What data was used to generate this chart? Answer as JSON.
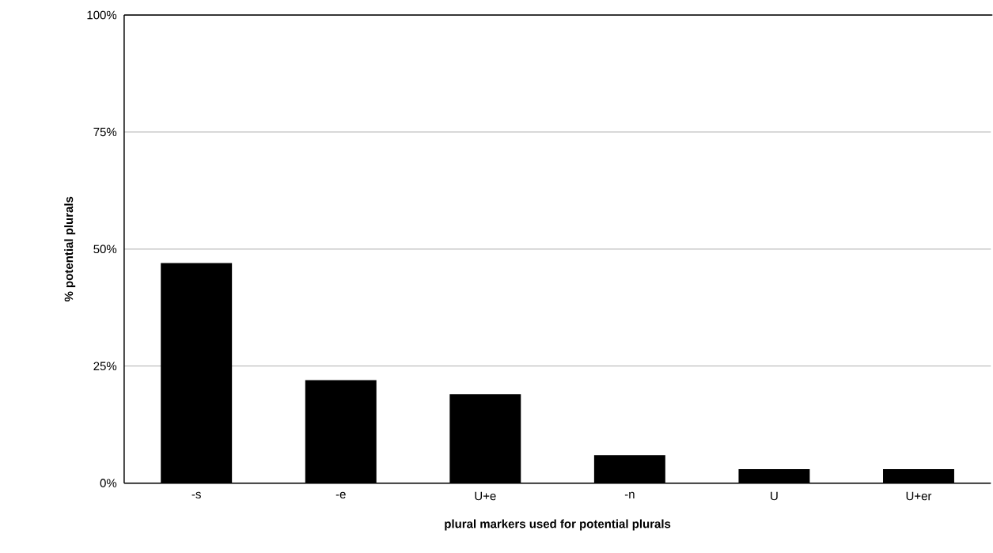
{
  "chart_data": {
    "type": "bar",
    "xlabel": "plural markers used for potential plurals",
    "ylabel": "% potential plurals",
    "categories": [
      "-s",
      "-e",
      "U+e",
      "-n",
      "U",
      "U+er"
    ],
    "values": [
      47,
      22,
      19,
      6,
      3,
      3
    ],
    "color": "#000000",
    "ylim": [
      0,
      100
    ],
    "yticks": [
      {
        "value": 0,
        "label": "0%"
      },
      {
        "value": 25,
        "label": "25%"
      },
      {
        "value": 50,
        "label": "50%"
      },
      {
        "value": 75,
        "label": "75%"
      },
      {
        "value": 100,
        "label": "100%"
      }
    ],
    "grid": "y"
  }
}
